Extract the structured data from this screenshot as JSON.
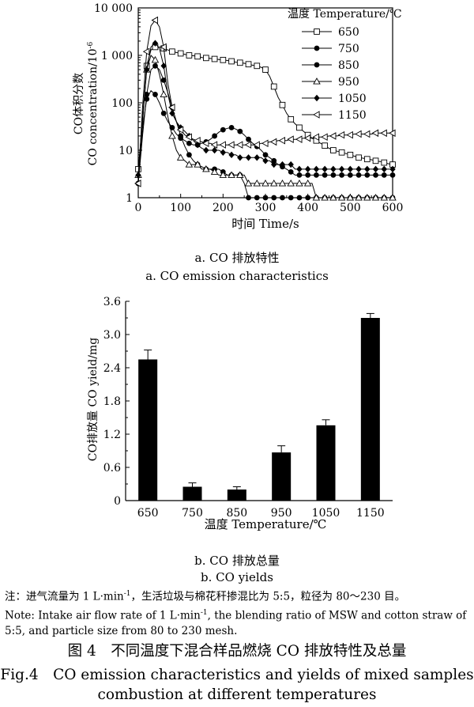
{
  "chart_data": [
    {
      "type": "line",
      "xlabel": "时间 Time/s",
      "ylabel_cn": "CO体积分数",
      "ylabel_en": "CO concentration/10",
      "ylabel_exp": "-6",
      "yscale": "log",
      "xlim": [
        0,
        600
      ],
      "ylim": [
        1,
        10000
      ],
      "x_ticks": [
        "0",
        "100",
        "200",
        "300",
        "400",
        "500",
        "600"
      ],
      "y_ticks": [
        "1",
        "10",
        "100",
        "1 000",
        "10 000"
      ],
      "legend_title": "温度 Temperature/℃",
      "legend_position": "top-right",
      "series": [
        {
          "name": "650",
          "marker": "square-open",
          "x": [
            0,
            10,
            20,
            30,
            40,
            50,
            60,
            70,
            80,
            90,
            100,
            110,
            120,
            130,
            140,
            150,
            160,
            170,
            180,
            190,
            200,
            210,
            220,
            230,
            240,
            250,
            260,
            270,
            280,
            290,
            300,
            310,
            320,
            330,
            340,
            350,
            360,
            370,
            380,
            390,
            400,
            410,
            420,
            430,
            440,
            450,
            460,
            470,
            480,
            490,
            500,
            510,
            520,
            530,
            540,
            550,
            560,
            570,
            580,
            590,
            600
          ],
          "y": [
            4,
            40,
            600,
            1300,
            1500,
            1500,
            1400,
            1300,
            1200,
            1150,
            1100,
            1050,
            1000,
            980,
            950,
            900,
            880,
            860,
            840,
            820,
            800,
            780,
            750,
            720,
            700,
            680,
            650,
            620,
            600,
            560,
            500,
            360,
            220,
            130,
            90,
            60,
            45,
            36,
            30,
            25,
            21,
            18,
            16,
            14,
            12.5,
            11,
            10,
            9.5,
            9,
            8.5,
            8,
            7.5,
            7,
            6.8,
            6.5,
            6.3,
            6,
            5.8,
            5.5,
            5.2,
            5
          ]
        },
        {
          "name": "750",
          "marker": "circle-filled",
          "x": [
            0,
            10,
            20,
            30,
            40,
            50,
            60,
            70,
            80,
            90,
            100,
            110,
            120,
            130,
            140,
            150,
            160,
            170,
            180,
            190,
            200,
            210,
            220,
            230,
            240,
            250,
            260,
            270,
            280,
            290,
            300,
            310,
            320,
            330,
            340,
            350,
            360,
            370,
            380,
            390,
            400,
            410,
            420,
            430,
            440,
            450,
            460,
            470,
            480,
            490,
            500,
            510,
            520,
            530,
            540,
            550,
            560,
            570,
            580,
            590,
            600
          ],
          "y": [
            2,
            20,
            150,
            500,
            600,
            500,
            300,
            160,
            80,
            40,
            20,
            12,
            8,
            6,
            5,
            4.5,
            4,
            4,
            4,
            4,
            3.5,
            3,
            3,
            3,
            3,
            2,
            1,
            1,
            1,
            1,
            1,
            1,
            1,
            1,
            1,
            1,
            1,
            1,
            1,
            1,
            1,
            1,
            1,
            1,
            1,
            1,
            1,
            1,
            1,
            1,
            1,
            1,
            1,
            1,
            1,
            1,
            1,
            1,
            1,
            1,
            1
          ]
        },
        {
          "name": "850",
          "marker": "circle-filled",
          "x": [
            0,
            10,
            20,
            30,
            40,
            50,
            60,
            70,
            80,
            90,
            100,
            110,
            120,
            130,
            140,
            150,
            160,
            170,
            180,
            190,
            200,
            210,
            220,
            230,
            240,
            250,
            260,
            270,
            280,
            290,
            300,
            310,
            320,
            330,
            340,
            350,
            360,
            370,
            380,
            390,
            400,
            410,
            420,
            430,
            440,
            450,
            460,
            470,
            480,
            490,
            500,
            510,
            520,
            530,
            540,
            550,
            560,
            570,
            580,
            590,
            600
          ],
          "y": [
            2,
            30,
            120,
            180,
            150,
            100,
            60,
            40,
            30,
            22,
            18,
            16,
            14,
            13,
            13,
            14,
            15,
            17,
            20,
            24,
            27,
            29,
            30,
            28,
            25,
            21,
            17,
            14,
            12,
            10,
            8,
            7,
            6,
            5,
            4.5,
            4,
            3.5,
            3,
            3,
            3,
            3,
            3,
            3,
            3,
            3,
            3,
            3,
            3,
            3,
            3,
            3,
            3,
            3,
            3,
            3,
            3,
            3,
            3,
            3,
            3,
            3
          ]
        },
        {
          "name": "950",
          "marker": "triangle-open",
          "x": [
            0,
            10,
            20,
            30,
            40,
            50,
            60,
            70,
            80,
            90,
            100,
            110,
            120,
            130,
            140,
            150,
            160,
            170,
            180,
            190,
            200,
            210,
            220,
            230,
            240,
            250,
            260,
            270,
            280,
            290,
            300,
            310,
            320,
            330,
            340,
            350,
            360,
            370,
            380,
            390,
            400,
            410,
            420,
            430,
            440,
            450,
            460,
            470,
            480,
            490,
            500,
            510,
            520,
            530,
            540,
            550,
            560,
            570,
            580,
            590,
            600
          ],
          "y": [
            3,
            50,
            500,
            1000,
            800,
            400,
            150,
            50,
            20,
            10,
            7,
            6,
            5,
            5,
            5,
            4,
            4,
            4,
            3.5,
            3,
            3,
            3,
            3,
            3,
            3,
            3,
            2,
            2,
            2,
            2,
            2,
            2,
            2,
            2,
            2,
            2,
            2,
            2,
            2,
            2,
            2,
            2,
            1,
            1,
            1,
            1,
            1,
            1,
            1,
            1,
            1,
            1,
            1,
            1,
            1,
            1,
            1,
            1,
            1,
            1,
            1
          ]
        },
        {
          "name": "1050",
          "marker": "diamond-filled",
          "x": [
            0,
            10,
            20,
            30,
            40,
            50,
            60,
            70,
            80,
            90,
            100,
            110,
            120,
            130,
            140,
            150,
            160,
            170,
            180,
            190,
            200,
            210,
            220,
            230,
            240,
            250,
            260,
            270,
            280,
            290,
            300,
            310,
            320,
            330,
            340,
            350,
            360,
            370,
            380,
            390,
            400,
            410,
            420,
            430,
            440,
            450,
            460,
            470,
            480,
            490,
            500,
            510,
            520,
            530,
            540,
            550,
            560,
            570,
            580,
            590,
            600
          ],
          "y": [
            3,
            40,
            500,
            1500,
            1800,
            1400,
            600,
            150,
            60,
            40,
            30,
            25,
            20,
            16,
            13,
            11,
            10,
            10,
            10,
            10,
            9,
            9,
            8,
            8,
            7,
            7,
            7,
            7,
            7,
            7,
            6,
            6,
            5,
            5,
            5,
            5,
            5,
            4,
            4,
            4,
            4,
            4,
            4,
            4,
            4,
            4,
            4,
            4,
            4,
            4,
            4,
            4,
            4,
            4,
            4,
            4,
            4,
            4,
            4,
            4,
            4
          ]
        },
        {
          "name": "1150",
          "marker": "triangle-left-open",
          "x": [
            0,
            10,
            20,
            30,
            40,
            50,
            60,
            70,
            80,
            90,
            100,
            110,
            120,
            130,
            140,
            150,
            160,
            170,
            180,
            190,
            200,
            210,
            220,
            230,
            240,
            250,
            260,
            270,
            280,
            290,
            300,
            310,
            320,
            330,
            340,
            350,
            360,
            370,
            380,
            390,
            400,
            410,
            420,
            430,
            440,
            450,
            460,
            470,
            480,
            490,
            500,
            510,
            520,
            530,
            540,
            550,
            560,
            570,
            580,
            590,
            600
          ],
          "y": [
            2,
            80,
            1200,
            4200,
            5500,
            4000,
            1500,
            250,
            80,
            40,
            27,
            21,
            19,
            17,
            16,
            15,
            14,
            14,
            13,
            13,
            13,
            13,
            13,
            13,
            13,
            13,
            13,
            13,
            13,
            14,
            14,
            15,
            15,
            16,
            16,
            16,
            17,
            17,
            17,
            18,
            18,
            18,
            19,
            19,
            19,
            20,
            20,
            20,
            21,
            21,
            21,
            22,
            22,
            22,
            22,
            22,
            23,
            23,
            23,
            23,
            23
          ]
        }
      ]
    },
    {
      "type": "bar",
      "xlabel": "温度 Temperature/℃",
      "ylabel": "CO排放量 CO yield/mg",
      "categories": [
        "650",
        "750",
        "850",
        "950",
        "1050",
        "1150"
      ],
      "values": [
        2.55,
        0.25,
        0.2,
        0.87,
        1.36,
        3.3
      ],
      "errors": [
        0.17,
        0.07,
        0.05,
        0.12,
        0.1,
        0.08
      ],
      "ylim": [
        0,
        3.6
      ],
      "y_ticks": [
        "0",
        "0.6",
        "1.2",
        "1.8",
        "2.4",
        "3.0",
        "3.6"
      ]
    }
  ],
  "captions": {
    "a_cn": "a. CO 排放特性",
    "a_en": "a. CO emission characteristics",
    "b_cn": "b. CO 排放总量",
    "b_en": "b. CO yields"
  },
  "note": {
    "cn_1": "注：进气流量为 1 L·min",
    "cn_exp": "-1",
    "cn_2": "，生活垃圾与棉花秆掺混比为 5:5，粒径为 80～230 目。",
    "en_1": "Note: Intake air flow rate of 1 L·min",
    "en_exp": "-1",
    "en_2": ", the blending ratio of MSW and cotton straw of 5:5, and particle size from 80 to 230 mesh."
  },
  "figure": {
    "cn": "图 4　不同温度下混合样品燃烧 CO 排放特性及总量",
    "en_line1": "Fig.4　CO emission characteristics and yields of mixed samples",
    "en_line2": "combustion at different temperatures"
  }
}
